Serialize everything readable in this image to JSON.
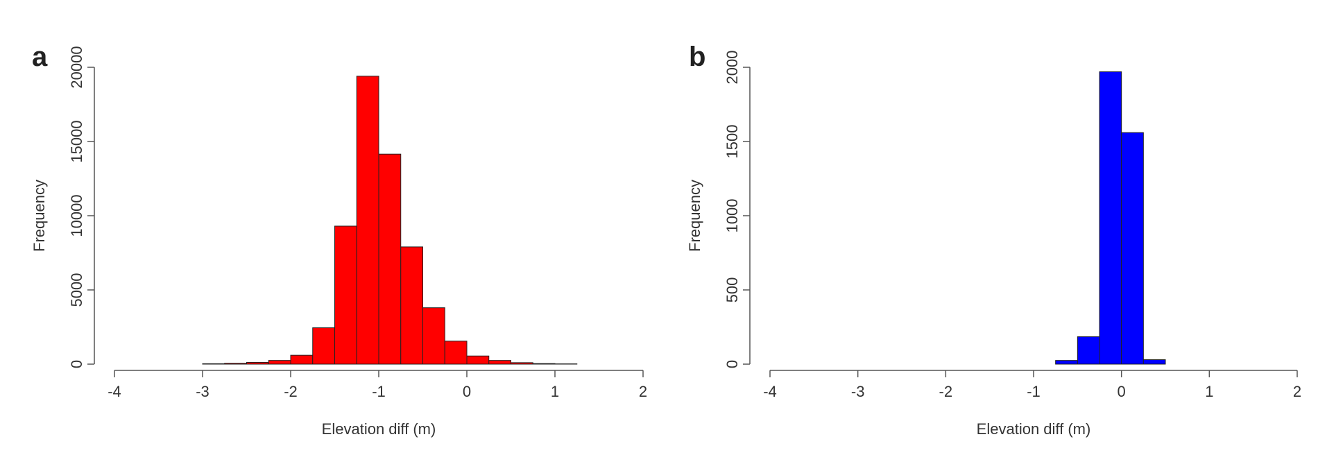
{
  "chart_data": [
    {
      "type": "bar",
      "panel_label": "a",
      "title": "",
      "xlabel": "Elevation diff (m)",
      "ylabel": "Frequency",
      "xlim": [
        -4,
        2
      ],
      "ylim": [
        0,
        20000
      ],
      "x_ticks": [
        "-4",
        "-3",
        "-2",
        "-1",
        "0",
        "1",
        "2"
      ],
      "y_ticks": [
        "0",
        "5000",
        "10000",
        "15000",
        "20000"
      ],
      "bin_width": 0.25,
      "bins_start": [
        -3.0,
        -2.75,
        -2.5,
        -2.25,
        -2.0,
        -1.75,
        -1.5,
        -1.25,
        -1.0,
        -0.75,
        -0.5,
        -0.25,
        0.0,
        0.25,
        0.5,
        0.75,
        1.0
      ],
      "values": [
        30,
        60,
        120,
        250,
        600,
        2450,
        9300,
        19400,
        14150,
        7900,
        3800,
        1550,
        550,
        250,
        100,
        40,
        20
      ],
      "color": "#ff0000",
      "grid": false
    },
    {
      "type": "bar",
      "panel_label": "b",
      "title": "",
      "xlabel": "Elevation diff (m)",
      "ylabel": "Frequency",
      "xlim": [
        -4,
        2
      ],
      "ylim": [
        0,
        2000
      ],
      "x_ticks": [
        "-4",
        "-3",
        "-2",
        "-1",
        "0",
        "1",
        "2"
      ],
      "y_ticks": [
        "0",
        "500",
        "1000",
        "1500",
        "2000"
      ],
      "bin_width": 0.25,
      "bins_start": [
        -0.75,
        -0.5,
        -0.25,
        0.0,
        0.25
      ],
      "values": [
        25,
        185,
        1970,
        1560,
        30
      ],
      "color": "#0000ff",
      "grid": false
    }
  ]
}
